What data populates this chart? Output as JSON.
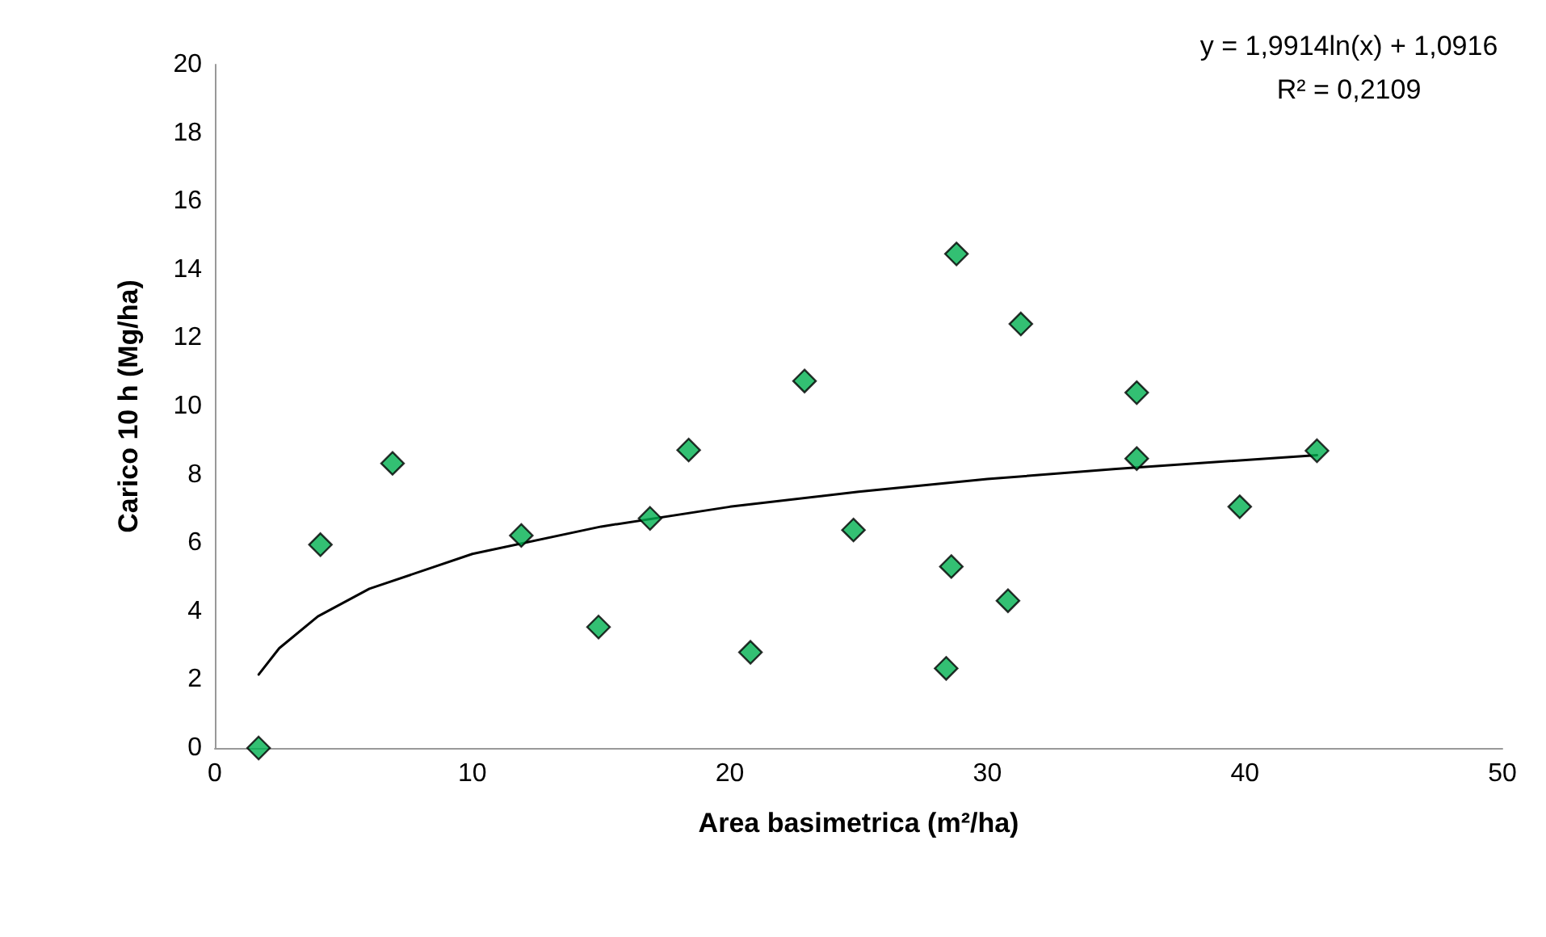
{
  "chart_data": {
    "type": "scatter",
    "xlabel": "Area basimetrica (m²/ha)",
    "ylabel": "Carico 10 h (Mg/ha)",
    "annotations": [
      "y = 1,9914ln(x) + 1,0916",
      "R² = 0,2109"
    ],
    "xlim": [
      0,
      50
    ],
    "xticks": [
      0,
      10,
      20,
      30,
      40,
      50
    ],
    "ylim": [
      0,
      20
    ],
    "yticks": [
      0,
      2,
      4,
      6,
      8,
      10,
      12,
      14,
      16,
      18,
      20
    ],
    "marker": "diamond",
    "series": [
      {
        "color": "#00b050",
        "x": [
          1.7,
          4.1,
          6.9,
          11.9,
          14.9,
          16.9,
          18.4,
          20.8,
          22.9,
          24.8,
          28.8,
          28.6,
          28.4,
          31.3,
          30.8,
          35.8,
          35.8,
          39.8,
          42.8
        ],
        "values": [
          0,
          5.95,
          8.33,
          6.22,
          3.54,
          6.72,
          8.72,
          2.8,
          10.74,
          6.38,
          14.46,
          5.31,
          2.33,
          12.41,
          4.31,
          10.4,
          8.47,
          7.06,
          8.7
        ]
      },
      {
        "type": "line",
        "color": "#000000",
        "marker": "none",
        "line_style": "solid",
        "x": [
          1.7,
          2.5,
          4,
          6,
          10,
          15,
          20,
          25,
          30,
          35,
          42.8
        ],
        "values": [
          2.15,
          2.92,
          3.85,
          4.66,
          5.68,
          6.48,
          7.06,
          7.5,
          7.87,
          8.17,
          8.57
        ]
      }
    ]
  }
}
